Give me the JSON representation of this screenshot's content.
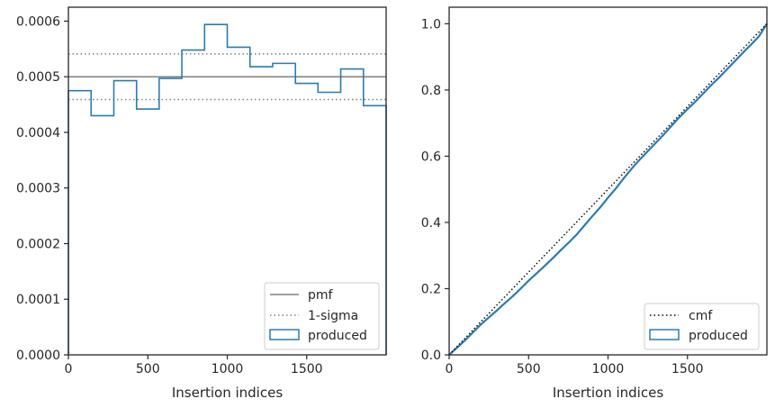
{
  "colors": {
    "produced": "#2b7bb0",
    "pmf": "#808080",
    "sigma": "#808080",
    "cmf": "#000000",
    "axes": "#262626"
  },
  "chart_data": [
    {
      "type": "histogram-step",
      "xlabel": "Insertion indices",
      "ylabel": "",
      "xlim": [
        0,
        2000
      ],
      "ylim": [
        0,
        0.000625
      ],
      "xticks": [
        0,
        500,
        1000,
        1500
      ],
      "xtick_labels": [
        "0",
        "500",
        "1000",
        "1500"
      ],
      "yticks": [
        0,
        0.0001,
        0.0002,
        0.0003,
        0.0004,
        0.0005,
        0.0006
      ],
      "ytick_labels": [
        "0.0000",
        "0.0001",
        "0.0002",
        "0.0003",
        "0.0004",
        "0.0005",
        "0.0006"
      ],
      "bin_edges": [
        0,
        143,
        286,
        429,
        571,
        714,
        857,
        1000,
        1143,
        1286,
        1429,
        1571,
        1714,
        1857,
        2000
      ],
      "values": [
        0.000475,
        0.00043,
        0.000493,
        0.000442,
        0.000497,
        0.000548,
        0.000594,
        0.000553,
        0.000518,
        0.000524,
        0.000488,
        0.000472,
        0.000514,
        0.000448
      ],
      "pmf": 0.0005,
      "sigma_lines": [
        0.000541,
        0.000459
      ],
      "legend": {
        "position": "lower right",
        "entries": [
          {
            "label": "pmf",
            "style": "solid-line"
          },
          {
            "label": "1-sigma",
            "style": "dotted-line"
          },
          {
            "label": "produced",
            "style": "box"
          }
        ]
      }
    },
    {
      "type": "line",
      "xlabel": "Insertion indices",
      "ylabel": "",
      "xlim": [
        0,
        2000
      ],
      "ylim": [
        0,
        1.05
      ],
      "xticks": [
        0,
        500,
        1000,
        1500
      ],
      "xtick_labels": [
        "0",
        "500",
        "1000",
        "1500"
      ],
      "yticks": [
        0,
        0.2,
        0.4,
        0.6,
        0.8,
        1.0
      ],
      "ytick_labels": [
        "0.0",
        "0.2",
        "0.4",
        "0.6",
        "0.8",
        "1.0"
      ],
      "cmf": {
        "x": [
          0,
          2000
        ],
        "y": [
          0,
          1.0
        ]
      },
      "produced": {
        "x": [
          0,
          50,
          100,
          150,
          200,
          250,
          300,
          350,
          400,
          450,
          500,
          550,
          600,
          650,
          700,
          750,
          800,
          850,
          900,
          950,
          1000,
          1050,
          1100,
          1150,
          1200,
          1250,
          1300,
          1350,
          1400,
          1450,
          1500,
          1550,
          1600,
          1650,
          1700,
          1750,
          1800,
          1850,
          1900,
          1950,
          2000
        ],
        "y": [
          0,
          0.022,
          0.044,
          0.068,
          0.092,
          0.113,
          0.134,
          0.156,
          0.177,
          0.2,
          0.224,
          0.246,
          0.268,
          0.291,
          0.315,
          0.338,
          0.362,
          0.39,
          0.418,
          0.445,
          0.475,
          0.503,
          0.534,
          0.563,
          0.59,
          0.615,
          0.64,
          0.665,
          0.692,
          0.718,
          0.742,
          0.765,
          0.79,
          0.815,
          0.838,
          0.863,
          0.888,
          0.913,
          0.937,
          0.962,
          1.0
        ]
      },
      "legend": {
        "position": "lower right",
        "entries": [
          {
            "label": "cmf",
            "style": "dotted-line"
          },
          {
            "label": "produced",
            "style": "box"
          }
        ]
      }
    }
  ]
}
